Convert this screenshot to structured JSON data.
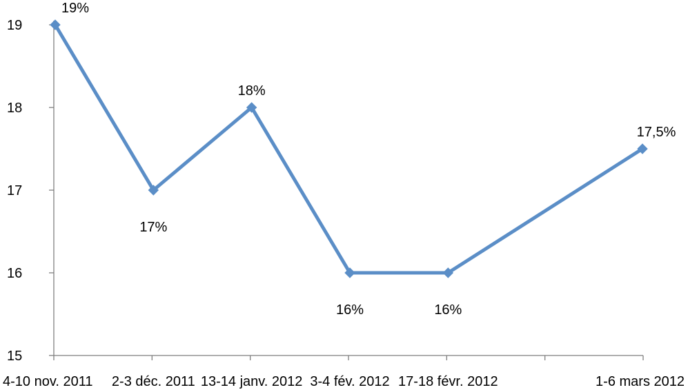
{
  "chart_data": {
    "type": "line",
    "categories": [
      "4-10 nov. 2011",
      "2-3 déc. 2011",
      "13-14 janv. 2012",
      "3-4 fév. 2012",
      "17-18 févr. 2012",
      "1-6 mars 2012"
    ],
    "series": [
      {
        "values": [
          19,
          17,
          18,
          16,
          16,
          17.5
        ],
        "labels": [
          "19%",
          "17%",
          "18%",
          "16%",
          "16%",
          "17,5%"
        ],
        "color": "#5b8ec7",
        "marker": "diamond"
      }
    ],
    "ylim": [
      15,
      19
    ],
    "yticks": [
      15,
      16,
      17,
      18,
      19
    ],
    "xlabel": "",
    "ylabel": "",
    "title": "",
    "grid": false,
    "legend": "none"
  }
}
